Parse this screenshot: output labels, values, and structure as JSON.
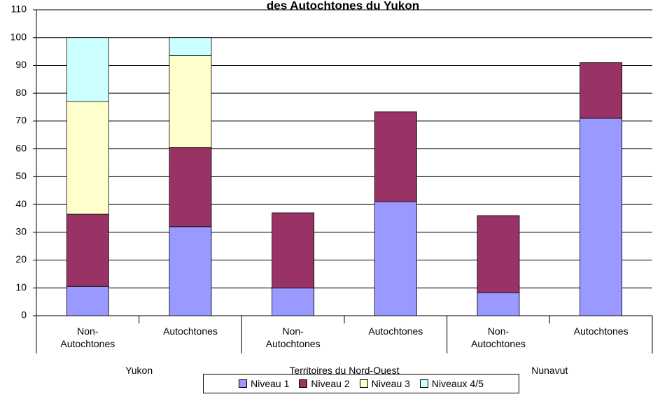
{
  "chart_data": {
    "type": "stacked_bar",
    "title": "des Autochtones du Yukon",
    "categories": [
      "Non-Autochtones",
      "Autochtones",
      "Non-Autochtones",
      "Autochtones",
      "Non-Autochtones",
      "Autochtones"
    ],
    "groups": [
      "Yukon",
      "Territoires du Nord-Ouest",
      "Nunavut"
    ],
    "series": [
      {
        "name": "Niveau 1",
        "color": "#9999ff",
        "values": [
          10.5,
          32,
          10,
          41,
          8.3,
          71
        ]
      },
      {
        "name": "Niveau 2",
        "color": "#993366",
        "values": [
          26,
          28.5,
          27,
          32.3,
          27.7,
          20
        ]
      },
      {
        "name": "Niveau 3",
        "color": "#ffffcc",
        "values": [
          40.5,
          33,
          null,
          null,
          null,
          null
        ]
      },
      {
        "name": "Niveaux 4/5",
        "color": "#ccffff",
        "values": [
          23,
          6.5,
          null,
          null,
          null,
          null
        ]
      }
    ],
    "ylim": [
      0,
      110
    ],
    "yticks": [
      0,
      10,
      20,
      30,
      40,
      50,
      60,
      70,
      80,
      90,
      100,
      110
    ],
    "grid": true,
    "legend": "bottom"
  }
}
